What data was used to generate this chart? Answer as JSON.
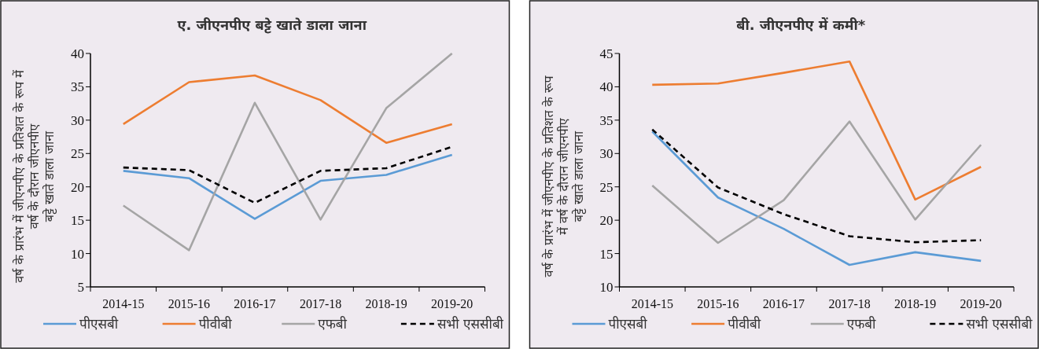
{
  "chart_data": [
    {
      "type": "line",
      "title": "ए. जीएनपीए बट्टे खाते डाला जाना",
      "ylabel": "वर्ष के प्रारंभ में जीएनपीए के प्रतिशत के रूप में\nवर्ष के दौरान जीएनपीए\nबट्टे खाते डाला जाना",
      "categories": [
        "2014-15",
        "2015-16",
        "2016-17",
        "2017-18",
        "2018-19",
        "2019-20"
      ],
      "ylim": [
        5,
        40
      ],
      "yticks": [
        5,
        10,
        15,
        20,
        25,
        30,
        35,
        40
      ],
      "grid": false,
      "legend": "bottom",
      "marker": "none",
      "series": [
        {
          "name": "पीएसबी",
          "color": "#5b9bd5",
          "values": [
            22.4,
            21.3,
            15.2,
            20.9,
            21.8,
            24.8
          ]
        },
        {
          "name": "पीवीबी",
          "color": "#ed7d31",
          "values": [
            29.4,
            35.7,
            36.7,
            33.0,
            26.6,
            29.4
          ]
        },
        {
          "name": "एफबी",
          "color": "#a5a5a5",
          "values": [
            17.2,
            10.5,
            32.6,
            15.1,
            31.8,
            40.0
          ]
        },
        {
          "name": "सभी एससीबी",
          "color": "#000000",
          "line_style": "dashed",
          "values": [
            22.9,
            22.5,
            17.6,
            22.4,
            22.8,
            26.0
          ]
        }
      ]
    },
    {
      "type": "line",
      "title": "बी. जीएनपीए में कमी*",
      "ylabel": "वर्ष के प्रारंभ में जीएनपीए के प्रतिशत के रूप\nमें वर्ष के दौरान जीएनपीए\nबट्टे खाते डाला जाना",
      "categories": [
        "2014-15",
        "2015-16",
        "2016-17",
        "2017-18",
        "2018-19",
        "2019-20"
      ],
      "ylim": [
        10,
        45
      ],
      "yticks": [
        10,
        15,
        20,
        25,
        30,
        35,
        40,
        45
      ],
      "grid": false,
      "legend": "bottom",
      "marker": "none",
      "series": [
        {
          "name": "पीएसबी",
          "color": "#5b9bd5",
          "values": [
            33.3,
            23.4,
            18.7,
            13.3,
            15.2,
            13.9
          ]
        },
        {
          "name": "पीवीबी",
          "color": "#ed7d31",
          "values": [
            40.3,
            40.5,
            42.1,
            43.8,
            23.1,
            28.0
          ]
        },
        {
          "name": "एफबी",
          "color": "#a5a5a5",
          "values": [
            25.2,
            16.6,
            23.0,
            34.8,
            20.1,
            31.3
          ]
        },
        {
          "name": "सभी एससीबी",
          "color": "#000000",
          "line_style": "dashed",
          "values": [
            33.6,
            24.9,
            20.9,
            17.6,
            16.7,
            17.0
          ]
        }
      ]
    }
  ]
}
